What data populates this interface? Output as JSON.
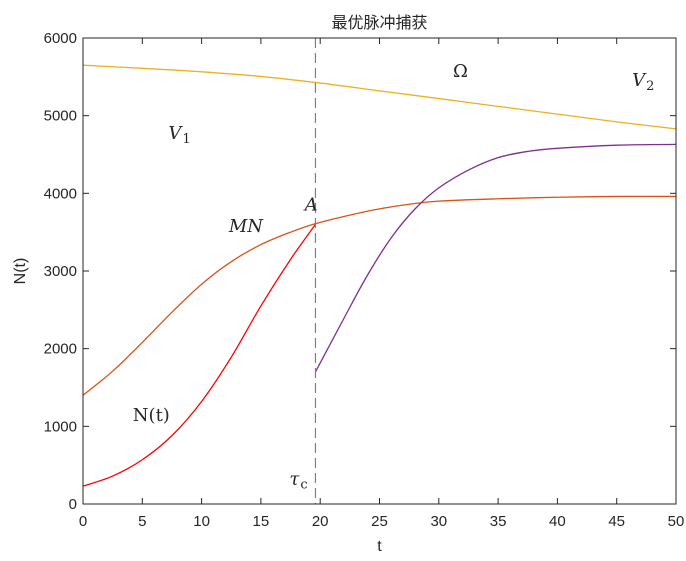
{
  "chart_data": {
    "type": "line",
    "title": "最优脉冲捕获",
    "xlabel": "t",
    "ylabel": "N(t)",
    "xlim": [
      0,
      50
    ],
    "ylim": [
      0,
      6000
    ],
    "xticks": [
      0,
      5,
      10,
      15,
      20,
      25,
      30,
      35,
      40,
      45,
      50
    ],
    "yticks": [
      0,
      1000,
      2000,
      3000,
      4000,
      5000,
      6000
    ],
    "grid": false,
    "legend": "none",
    "colors": {
      "v_boundary": "#EDB120",
      "mn_curve": "#D95319",
      "n_curve": "#FF0000",
      "post_harvest": "#7E2F8E",
      "tau_line": "#7f7f7f",
      "axis": "#262626"
    },
    "series": [
      {
        "x": [
          0,
          5,
          10,
          15,
          20,
          25,
          30,
          35,
          40,
          45,
          50
        ],
        "y": [
          5650,
          5610,
          5565,
          5505,
          5420,
          5320,
          5220,
          5120,
          5020,
          4920,
          4830
        ]
      },
      {
        "x": [
          0,
          2.5,
          5,
          7.5,
          10,
          12.5,
          15,
          17.5,
          19.6,
          22.5,
          25,
          27.5,
          30,
          35,
          40,
          45,
          50
        ],
        "y": [
          1400,
          1710,
          2080,
          2470,
          2830,
          3120,
          3340,
          3500,
          3610,
          3720,
          3800,
          3860,
          3900,
          3930,
          3950,
          3960,
          3960
        ]
      },
      {
        "x": [
          0,
          2.5,
          5,
          7.5,
          10,
          12.5,
          15,
          17.5,
          19.6
        ],
        "y": [
          230,
          360,
          570,
          880,
          1320,
          1890,
          2550,
          3150,
          3600
        ]
      },
      {
        "x": [
          19.6,
          22,
          24,
          26,
          28,
          30,
          32.5,
          35,
          37.5,
          40,
          45,
          50
        ],
        "y": [
          1700,
          2390,
          2950,
          3430,
          3800,
          4070,
          4300,
          4460,
          4540,
          4580,
          4620,
          4630
        ]
      }
    ],
    "vline": {
      "x": 19.6
    },
    "annotations": [
      {
        "text": "V",
        "sub": "1",
        "x": 7.2,
        "y": 4700,
        "style": "italic"
      },
      {
        "text": "V",
        "sub": "2",
        "x": 46.3,
        "y": 5380,
        "style": "italic"
      },
      {
        "text": "Ω",
        "x": 31.2,
        "y": 5500,
        "style": "normal"
      },
      {
        "text": "A",
        "x": 18.7,
        "y": 3780,
        "style": "italic"
      },
      {
        "text": "MN",
        "x": 12.3,
        "y": 3500,
        "style": "italic"
      },
      {
        "text": "N(t)",
        "x": 4.2,
        "y": 1070,
        "style": "normal"
      },
      {
        "text": "τ",
        "sub": "c",
        "x": 17.4,
        "y": 250,
        "style": "italic"
      }
    ]
  }
}
